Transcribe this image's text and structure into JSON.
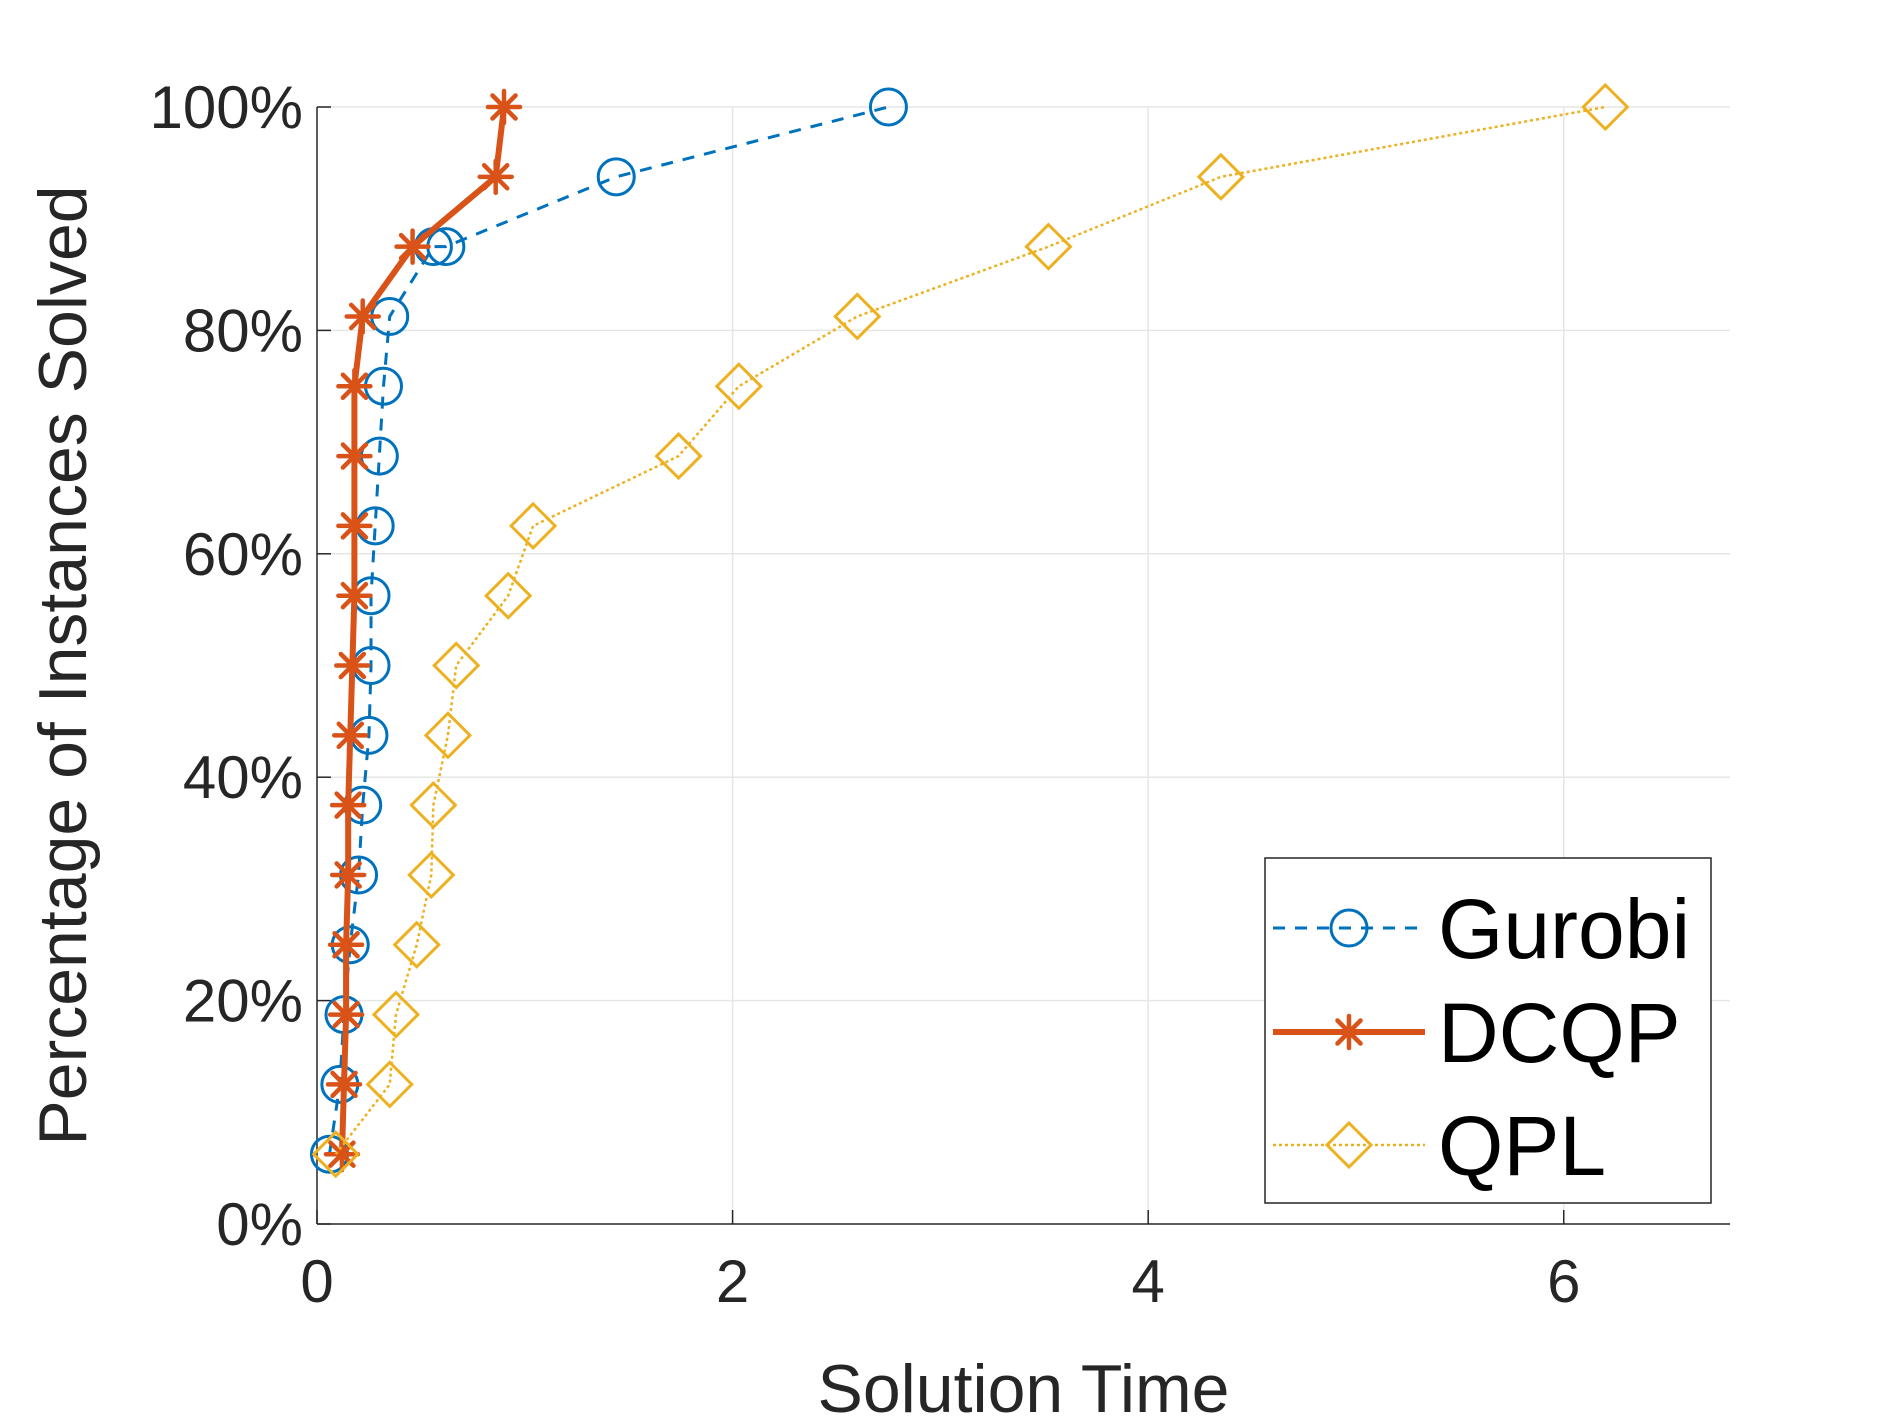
{
  "chart_data": {
    "type": "line",
    "title": "",
    "xlabel": "Solution Time",
    "ylabel": "Percentage of Instances Solved",
    "xlim": [
      0,
      6.8
    ],
    "ylim": [
      0,
      100
    ],
    "xticks": [
      0,
      2,
      4,
      6
    ],
    "xtick_labels": [
      "0",
      "2",
      "4",
      "6"
    ],
    "yticks": [
      0,
      20,
      40,
      60,
      80,
      100
    ],
    "ytick_labels": [
      "0%",
      "20%",
      "40%",
      "60%",
      "80%",
      "100%"
    ],
    "grid": true,
    "legend_position": "bottom-right",
    "series": [
      {
        "name": "Gurobi",
        "color": "#0072BD",
        "marker": "circle",
        "line_style": "dashed",
        "x": [
          0.06,
          0.11,
          0.13,
          0.16,
          0.2,
          0.22,
          0.25,
          0.26,
          0.26,
          0.28,
          0.3,
          0.32,
          0.35,
          0.56,
          0.62,
          1.44,
          2.75
        ],
        "y": [
          6.25,
          12.5,
          18.75,
          25,
          31.25,
          37.5,
          43.75,
          50,
          56.25,
          62.5,
          68.75,
          75,
          81.25,
          87.5,
          87.5,
          93.75,
          100
        ]
      },
      {
        "name": "DCQP",
        "color": "#D95319",
        "marker": "asterisk",
        "line_style": "solid",
        "x": [
          0.12,
          0.13,
          0.14,
          0.14,
          0.15,
          0.15,
          0.16,
          0.17,
          0.18,
          0.18,
          0.18,
          0.18,
          0.22,
          0.46,
          0.86,
          0.9
        ],
        "y": [
          6.25,
          12.5,
          18.75,
          25,
          31.25,
          37.5,
          43.75,
          50,
          56.25,
          62.5,
          68.75,
          75,
          81.25,
          87.5,
          93.75,
          100
        ]
      },
      {
        "name": "QPL",
        "color": "#EDB120",
        "marker": "diamond",
        "line_style": "dotted",
        "x": [
          0.09,
          0.35,
          0.38,
          0.48,
          0.55,
          0.56,
          0.63,
          0.67,
          0.92,
          1.04,
          1.74,
          2.03,
          2.6,
          3.52,
          4.35,
          6.2
        ],
        "y": [
          6.25,
          12.5,
          18.75,
          25,
          31.25,
          37.5,
          43.75,
          50,
          56.25,
          62.5,
          68.75,
          75,
          81.25,
          87.5,
          93.75,
          100
        ]
      }
    ]
  }
}
